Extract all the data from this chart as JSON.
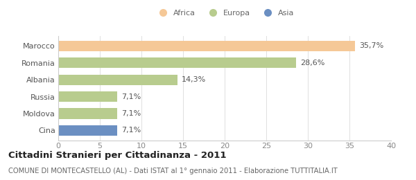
{
  "categories": [
    "Marocco",
    "Romania",
    "Albania",
    "Russia",
    "Moldova",
    "Cina"
  ],
  "values": [
    35.7,
    28.6,
    14.3,
    7.1,
    7.1,
    7.1
  ],
  "labels": [
    "35,7%",
    "28,6%",
    "14,3%",
    "7,1%",
    "7,1%",
    "7,1%"
  ],
  "colors": [
    "#f5c897",
    "#b8cc8e",
    "#b8cc8e",
    "#b8cc8e",
    "#b8cc8e",
    "#6b8fc2"
  ],
  "legend": [
    {
      "label": "Africa",
      "color": "#f5c897"
    },
    {
      "label": "Europa",
      "color": "#b8cc8e"
    },
    {
      "label": "Asia",
      "color": "#6b8fc2"
    }
  ],
  "xlim": [
    0,
    40
  ],
  "xticks": [
    0,
    5,
    10,
    15,
    20,
    25,
    30,
    35,
    40
  ],
  "title": "Cittadini Stranieri per Cittadinanza - 2011",
  "subtitle": "COMUNE DI MONTECASTELLO (AL) - Dati ISTAT al 1° gennaio 2011 - Elaborazione TUTTITALIA.IT",
  "background_color": "#ffffff",
  "bar_height": 0.62,
  "label_fontsize": 8,
  "tick_fontsize": 8,
  "ylabel_fontsize": 9,
  "title_fontsize": 9.5,
  "subtitle_fontsize": 7.2
}
